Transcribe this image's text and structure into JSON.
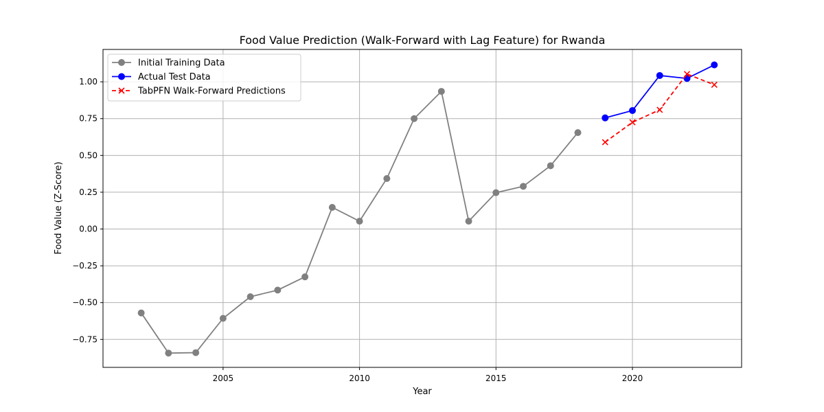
{
  "chart_data": {
    "type": "line",
    "title": "Food Value Prediction (Walk-Forward with Lag Feature) for Rwanda",
    "xlabel": "Year",
    "ylabel": "Food Value (Z-Score)",
    "xlim": [
      2000.6,
      2024.0
    ],
    "ylim": [
      -0.94,
      1.22
    ],
    "xticks": [
      2005,
      2010,
      2015,
      2020
    ],
    "yticks": [
      -0.75,
      -0.5,
      -0.25,
      0.0,
      0.25,
      0.5,
      0.75,
      1.0
    ],
    "xtick_labels": [
      "2005",
      "2010",
      "2015",
      "2020"
    ],
    "ytick_labels": [
      "−0.75",
      "−0.50",
      "−0.25",
      "0.00",
      "0.25",
      "0.50",
      "0.75",
      "1.00"
    ],
    "grid": true,
    "legend_position": "top-left",
    "series": [
      {
        "name": "Initial Training Data",
        "color": "#808080",
        "style": "solid",
        "marker": "circle",
        "x": [
          2002,
          2003,
          2004,
          2005,
          2006,
          2007,
          2008,
          2009,
          2010,
          2011,
          2012,
          2013,
          2014,
          2015,
          2016,
          2017,
          2018
        ],
        "y": [
          -0.57,
          -0.843,
          -0.84,
          -0.607,
          -0.46,
          -0.415,
          -0.325,
          0.147,
          0.053,
          0.343,
          0.75,
          0.935,
          0.053,
          0.247,
          0.29,
          0.43,
          0.655
        ]
      },
      {
        "name": "Actual Test Data",
        "color": "#0000ff",
        "style": "solid",
        "marker": "circle",
        "x": [
          2019,
          2020,
          2021,
          2022,
          2023
        ],
        "y": [
          0.755,
          0.805,
          1.043,
          1.023,
          1.115
        ]
      },
      {
        "name": "TabPFN Walk-Forward Predictions",
        "color": "#ff0000",
        "style": "dashed",
        "marker": "x",
        "x": [
          2019,
          2020,
          2021,
          2022,
          2023
        ],
        "y": [
          0.59,
          0.725,
          0.81,
          1.053,
          0.98
        ]
      }
    ]
  }
}
